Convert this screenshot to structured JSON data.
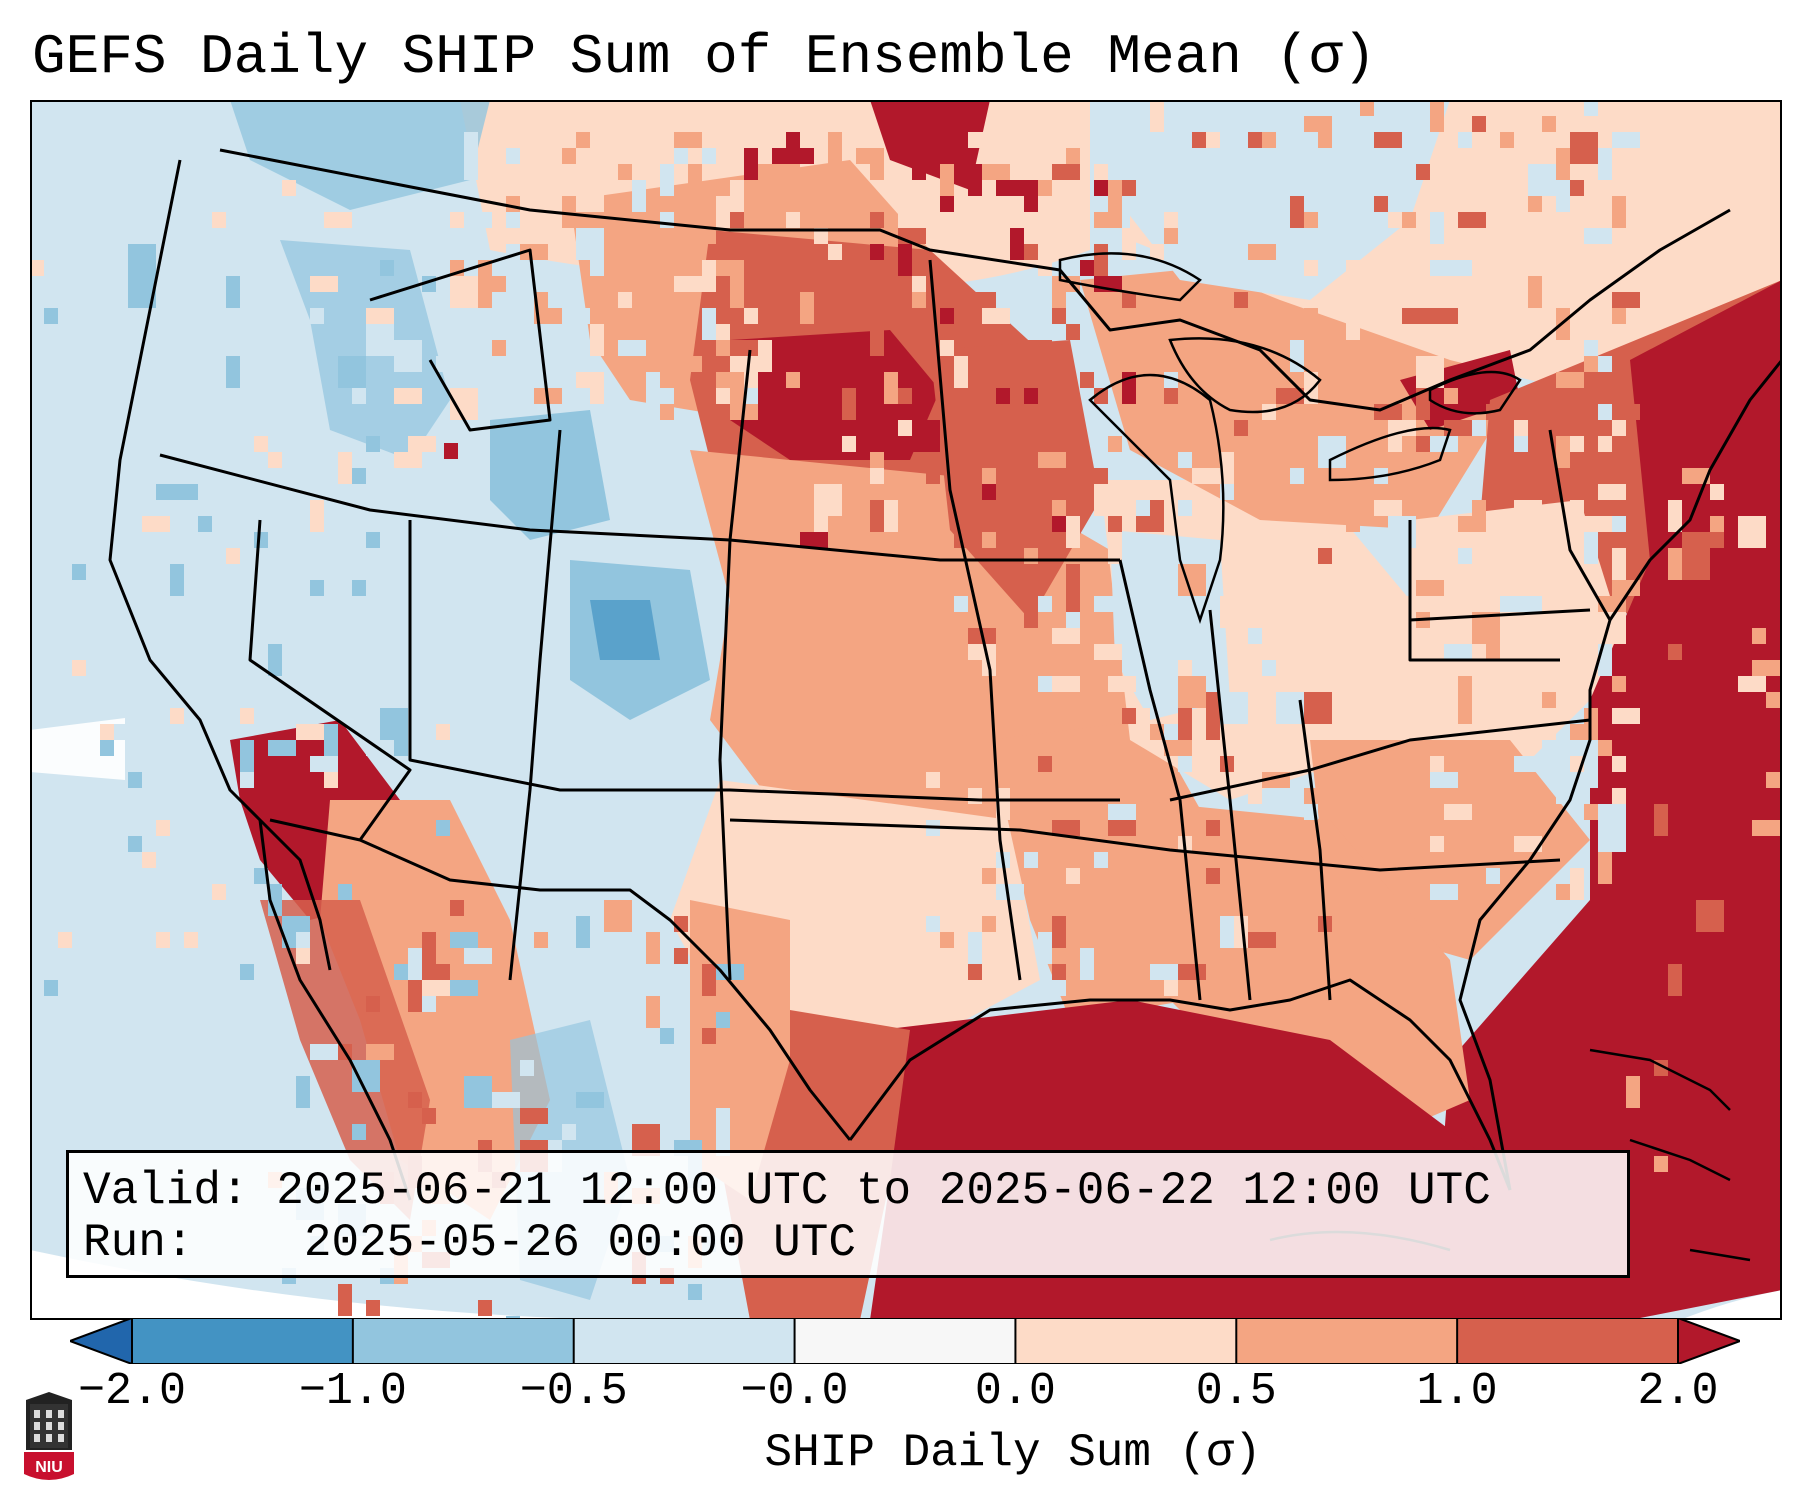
{
  "title": "GEFS Daily SHIP Sum of Ensemble Mean (σ)",
  "info": {
    "valid_label": "Valid:",
    "valid_value": "2025-06-21 12:00 UTC to 2025-06-22 12:00 UTC",
    "run_label": "Run:",
    "run_value": "2025-05-26 00:00 UTC"
  },
  "colorbar": {
    "label": "SHIP Daily Sum (σ)",
    "ticks": [
      "−2.0",
      "−1.0",
      "−0.5",
      "−0.0",
      "0.0",
      "0.5",
      "1.0",
      "2.0"
    ],
    "colors": [
      "#2166ac",
      "#4393c3",
      "#92c5de",
      "#d1e5f0",
      "#f7f7f7",
      "#fddbc7",
      "#f4a582",
      "#d6604d",
      "#b2182b"
    ],
    "extend": "both"
  },
  "logo": {
    "text": "NIU"
  },
  "colors": {
    "land_light_blue": "#d1e5f0",
    "medium_blue": "#92c5de",
    "strong_blue": "#4393c3",
    "light_salmon": "#fddbc7",
    "salmon": "#f4a582",
    "red_orange": "#d6604d",
    "dark_red": "#b2182b"
  }
}
